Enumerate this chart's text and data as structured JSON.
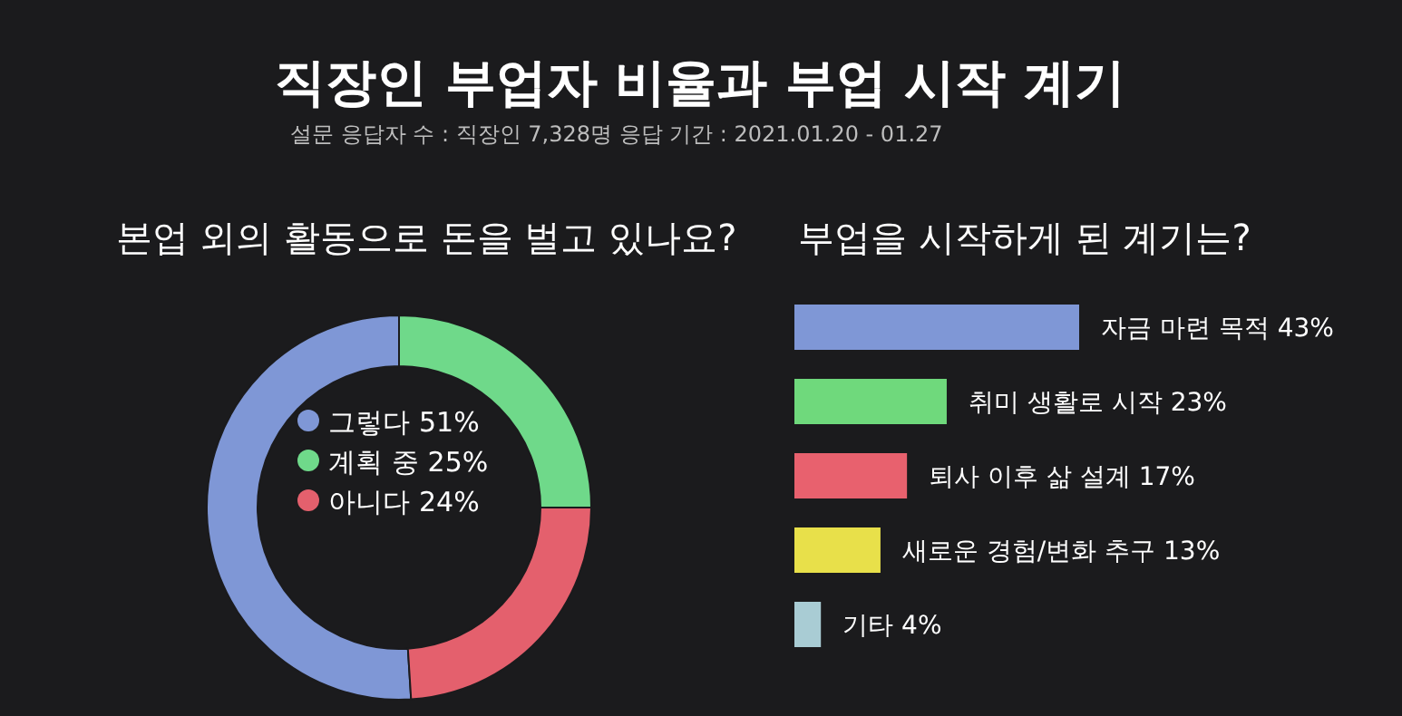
{
  "chart_data": [
    {
      "type": "other",
      "title": "직장인 부업자 비율과 부업 시작 계기",
      "subtitle": "설문 응답자 수 : 직장인 7,328명    응답 기간 : 2021.01.20 - 01.27"
    },
    {
      "type": "donut",
      "title": "본업 외의 활동으로 돈을 벌고 있나요?",
      "categories": [
        "그렇다",
        "계획 중",
        "아니다"
      ],
      "values": [
        51,
        25,
        24
      ],
      "value_labels": [
        "51%",
        "25%",
        "24%"
      ],
      "colors": [
        "#7f97d6",
        "#6fd98a",
        "#e4606d"
      ],
      "legend": "center"
    },
    {
      "type": "bar",
      "orientation": "horizontal",
      "title": "부업을 시작하게 된 계기는?",
      "categories": [
        null,
        null,
        null,
        null,
        null
      ],
      "values": [
        43,
        23,
        17,
        13,
        4
      ],
      "value_labels": [
        "자금 마련 목적 43%",
        "취미 생활로 시작 23%",
        "퇴사 이후 삶 설계 17%",
        "새로운 경험/변화 추구 13%",
        "기타 4%"
      ],
      "colors": [
        "#7f97d6",
        "#6fd97c",
        "#e8616e",
        "#e8e04a",
        "#a9ccd4"
      ]
    }
  ]
}
